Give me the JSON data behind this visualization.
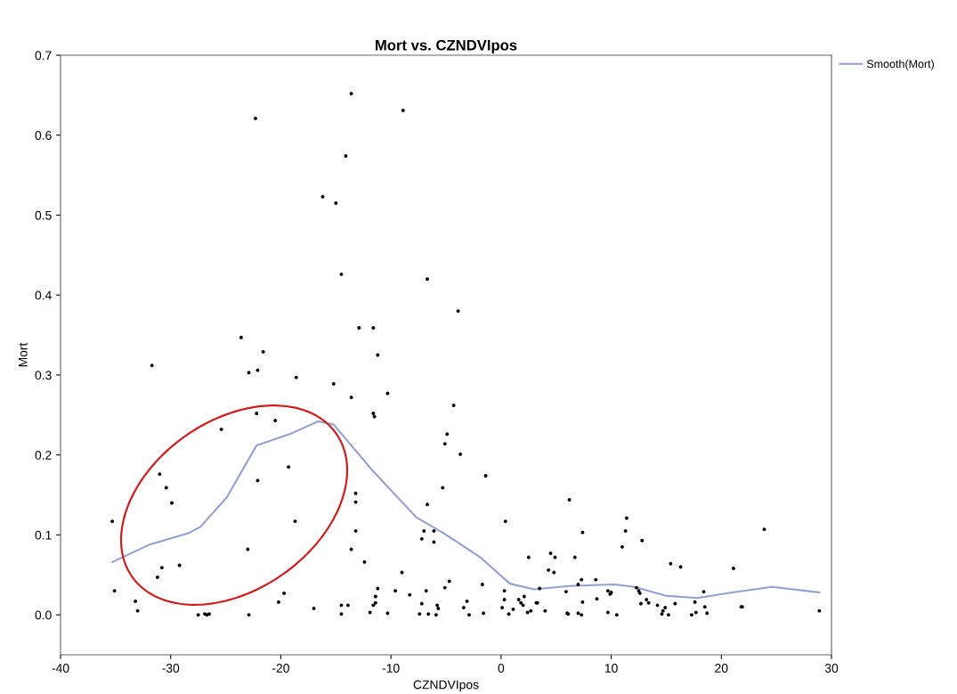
{
  "chart_data": {
    "type": "scatter",
    "title": "Mort vs. CZNDVIpos",
    "xlabel": "CZNDVIpos",
    "ylabel": "Mort",
    "xlim": [
      -40,
      30
    ],
    "xticks": [
      -40,
      -30,
      -20,
      -10,
      0,
      10,
      20,
      30
    ],
    "ylim": [
      -0.05,
      0.7
    ],
    "yticks": [
      {
        "value": 0,
        "label": "0.0"
      },
      0.1,
      0.2,
      0.3,
      0.4,
      0.5,
      0.6,
      0.7
    ],
    "grid": false,
    "legend": "right",
    "series": [
      {
        "color": "#000000",
        "marker": "circle",
        "x": [
          -13.6,
          -8.9,
          -22.3,
          -14.1,
          -16.2,
          -15.0,
          -14.5,
          -6.7,
          -3.9,
          -12.9,
          -11.6,
          -23.6,
          -21.6,
          -11.2,
          -31.7,
          -22.9,
          -22.1,
          -18.6,
          -15.2,
          -13.6,
          -10.3,
          -4.3,
          -11.6,
          -11.5,
          -22.2,
          -20.5,
          -25.4,
          -4.9,
          -5.1,
          -3.7,
          -19.3,
          -1.4,
          -31.0,
          -30.4,
          -22.1,
          -13.2,
          -13.2,
          -5.3,
          -29.9,
          -6.7,
          -35.3,
          -18.7,
          -13.2,
          -7.0,
          -6.1,
          -7.2,
          -6.1,
          -23.0,
          -13.6,
          -12.4,
          -29.2,
          -30.8,
          -31.2,
          -9.0,
          -4.7,
          -5.1,
          -1.7,
          -35.1,
          -11.2,
          -9.6,
          -6.8,
          -8.3,
          -11.4,
          -19.7,
          -20.2,
          -33.2,
          -33.0,
          -11.4,
          -11.6,
          -14.5,
          -13.9,
          -17.0,
          -7.2,
          -5.8,
          -5.7,
          -3.4,
          -3.1,
          -11.9,
          -10.3,
          -14.5,
          -7.4,
          -6.6,
          -5.9,
          -2.9,
          -1.6,
          -27.5,
          -26.9,
          -26.7,
          -26.5,
          -22.9,
          6.2,
          0.4,
          11.4,
          11.3,
          7.4,
          23.9,
          12.8,
          11.0,
          2.5,
          4.5,
          4.9,
          6.7,
          4.3,
          4.8,
          15.4,
          16.3,
          21.1,
          7.3,
          8.6,
          7.0,
          3.5,
          5.9,
          9.7,
          10.0,
          9.9,
          12.3,
          12.5,
          12.6,
          18.4,
          0.3,
          0.3,
          2.1,
          1.6,
          1.8,
          2.0,
          3.2,
          3.3,
          8.7,
          7.4,
          13.2,
          13.4,
          12.7,
          14.2,
          14.9,
          14.7,
          15.8,
          17.6,
          18.5,
          21.8,
          21.9,
          0.1,
          1.1,
          2.4,
          2.7,
          4.0,
          0.7,
          6.0,
          6.1,
          7.0,
          7.3,
          9.7,
          10.5,
          14.6,
          15.2,
          17.3,
          17.7,
          18.7,
          28.9
        ],
        "values": [
          0.652,
          0.631,
          0.621,
          0.574,
          0.523,
          0.515,
          0.426,
          0.42,
          0.38,
          0.359,
          0.359,
          0.347,
          0.329,
          0.325,
          0.312,
          0.303,
          0.306,
          0.297,
          0.289,
          0.272,
          0.277,
          0.262,
          0.252,
          0.248,
          0.252,
          0.243,
          0.232,
          0.226,
          0.214,
          0.201,
          0.185,
          0.174,
          0.176,
          0.159,
          0.168,
          0.152,
          0.141,
          0.159,
          0.14,
          0.138,
          0.117,
          0.117,
          0.105,
          0.105,
          0.105,
          0.095,
          0.091,
          0.082,
          0.082,
          0.066,
          0.062,
          0.059,
          0.047,
          0.053,
          0.042,
          0.034,
          0.038,
          0.03,
          0.033,
          0.03,
          0.03,
          0.025,
          0.023,
          0.027,
          0.016,
          0.017,
          0.005,
          0.015,
          0.012,
          0.012,
          0.012,
          0.008,
          0.014,
          0.012,
          0.008,
          0.009,
          0.017,
          0.003,
          0.002,
          0.001,
          0.001,
          0.001,
          0.0,
          0.0,
          0.002,
          0.0,
          0.001,
          0.0,
          0.001,
          0.0,
          0.144,
          0.117,
          0.121,
          0.105,
          0.103,
          0.107,
          0.093,
          0.085,
          0.072,
          0.077,
          0.072,
          0.072,
          0.056,
          0.053,
          0.064,
          0.06,
          0.058,
          0.044,
          0.044,
          0.038,
          0.033,
          0.029,
          0.03,
          0.028,
          0.026,
          0.034,
          0.03,
          0.027,
          0.029,
          0.03,
          0.019,
          0.023,
          0.019,
          0.015,
          0.012,
          0.015,
          0.015,
          0.02,
          0.016,
          0.019,
          0.015,
          0.014,
          0.012,
          0.009,
          0.005,
          0.014,
          0.016,
          0.01,
          0.01,
          0.01,
          0.009,
          0.007,
          0.003,
          0.005,
          0.005,
          0.001,
          0.002,
          0.001,
          0.002,
          0.0,
          0.003,
          0.0,
          0.001,
          0.0,
          0.0,
          0.003,
          0.002,
          0.005
        ]
      },
      {
        "type": "line",
        "name": "Smooth(Mort)",
        "color": "#94a0d0",
        "x": [
          -35.3,
          -31.9,
          -28.4,
          -27.3,
          -24.9,
          -22.2,
          -19.2,
          -16.6,
          -15.2,
          -11.7,
          -7.7,
          -5.2,
          -1.8,
          0.8,
          3.0,
          6.2,
          10.3,
          12.1,
          14.9,
          17.8,
          21.0,
          24.6,
          28.9
        ],
        "values": [
          0.066,
          0.088,
          0.102,
          0.11,
          0.147,
          0.212,
          0.226,
          0.242,
          0.238,
          0.181,
          0.122,
          0.102,
          0.071,
          0.039,
          0.032,
          0.036,
          0.038,
          0.035,
          0.024,
          0.021,
          0.028,
          0.035,
          0.028
        ]
      }
    ]
  }
}
